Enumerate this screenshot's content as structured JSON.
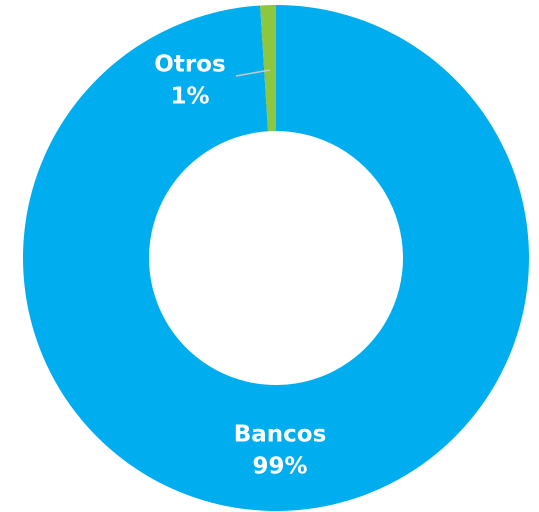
{
  "chart_data": {
    "type": "donut",
    "categories": [
      "Bancos",
      "Otros"
    ],
    "values": [
      99,
      1
    ],
    "value_labels": [
      "99%",
      "1%"
    ],
    "colors": [
      "#00aeef",
      "#8dc63f"
    ]
  }
}
